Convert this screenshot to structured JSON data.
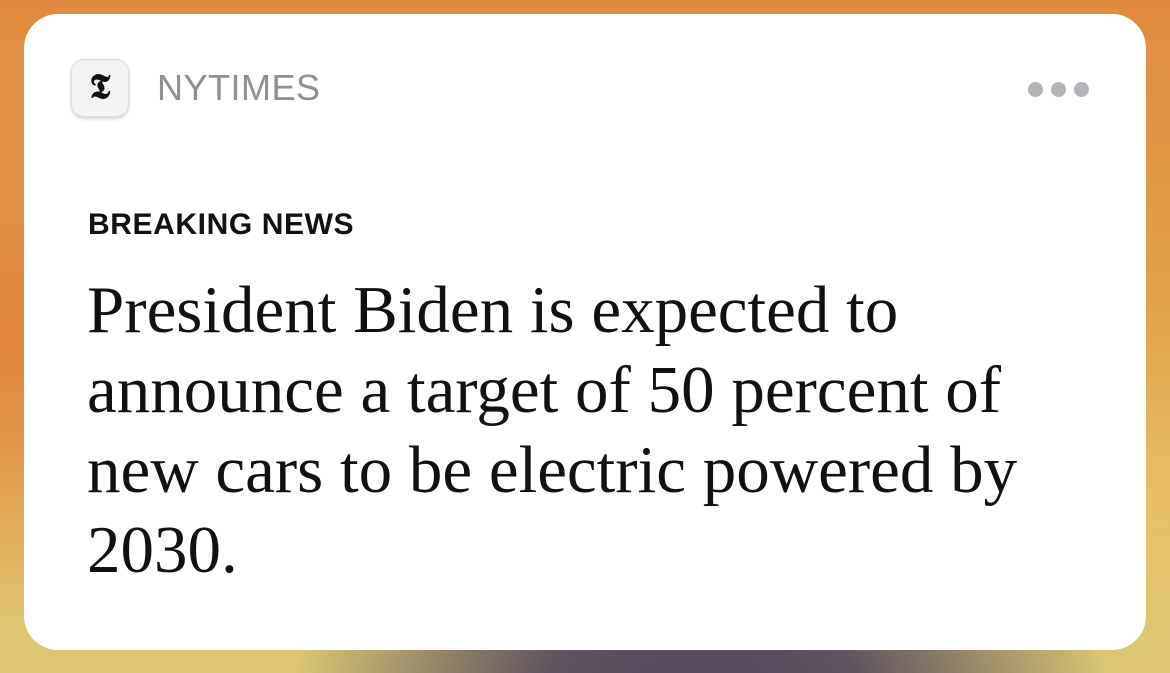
{
  "notification": {
    "app_icon": "nyt-logo-icon",
    "app_icon_glyph": "𝕿",
    "app_name": "NYTIMES",
    "more_icon": "ellipsis-icon",
    "category": "BREAKING NEWS",
    "headline": "President Biden is expected to announce a target of 50 percent of new cars to be electric powered by 2030."
  }
}
